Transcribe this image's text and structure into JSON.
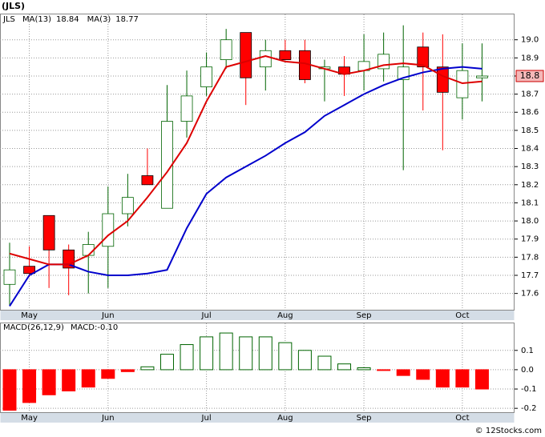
{
  "title": "(JLS)",
  "footer": "© 12Stocks.com",
  "chart_data": [
    {
      "type": "candlestick",
      "legend_symbol": "JLS",
      "categories": [
        null,
        "May",
        null,
        null,
        null,
        "Jun",
        null,
        null,
        null,
        null,
        "Jul",
        null,
        null,
        null,
        "Aug",
        null,
        null,
        null,
        "Sep",
        null,
        null,
        null,
        null,
        "Oct",
        null
      ],
      "open": [
        17.65,
        17.75,
        18.03,
        17.84,
        17.81,
        17.86,
        18.04,
        18.25,
        18.07,
        18.55,
        18.74,
        18.89,
        19.04,
        18.85,
        18.94,
        18.94,
        18.84,
        18.85,
        18.83,
        18.84,
        18.78,
        18.96,
        18.85,
        18.68,
        18.79
      ],
      "high": [
        17.88,
        17.86,
        18.03,
        17.87,
        17.94,
        18.19,
        18.26,
        18.4,
        18.75,
        18.83,
        18.93,
        19.06,
        19.04,
        19.0,
        19.0,
        19.0,
        18.89,
        18.91,
        19.03,
        19.04,
        19.08,
        19.04,
        19.03,
        18.98,
        18.98
      ],
      "low": [
        17.53,
        17.69,
        17.63,
        17.59,
        17.6,
        17.63,
        17.97,
        18.2,
        18.07,
        18.46,
        18.69,
        18.84,
        18.64,
        18.72,
        18.89,
        18.76,
        18.66,
        18.69,
        18.72,
        18.77,
        18.28,
        18.61,
        18.39,
        18.56,
        18.66
      ],
      "close": [
        17.73,
        17.71,
        17.84,
        17.74,
        17.87,
        18.04,
        18.13,
        18.2,
        18.55,
        18.69,
        18.85,
        19.0,
        18.79,
        18.94,
        18.89,
        18.78,
        18.85,
        18.81,
        18.88,
        18.92,
        18.85,
        18.85,
        18.71,
        18.83,
        18.8
      ],
      "up_color": "#006400",
      "down_color": "#ff0000",
      "series": [
        {
          "name": "MA(13)",
          "color": "#0000cc",
          "values": [
            17.53,
            17.7,
            17.76,
            17.76,
            17.72,
            17.7,
            17.7,
            17.71,
            17.73,
            17.96,
            18.15,
            18.24,
            18.3,
            18.36,
            18.43,
            18.49,
            18.58,
            18.64,
            18.7,
            18.75,
            18.79,
            18.82,
            18.84,
            18.85,
            18.84
          ]
        },
        {
          "name": "MA(3)",
          "color": "#dd0000",
          "values": [
            17.82,
            17.79,
            17.76,
            17.76,
            17.81,
            17.92,
            18.0,
            18.13,
            18.27,
            18.43,
            18.66,
            18.85,
            18.88,
            18.91,
            18.88,
            18.87,
            18.84,
            18.81,
            18.83,
            18.86,
            18.87,
            18.86,
            18.8,
            18.76,
            18.77
          ]
        }
      ],
      "price_tag": {
        "value": 18.8,
        "label": "18.8"
      },
      "ylim": [
        17.51,
        19.14
      ],
      "yticks": [
        17.6,
        17.7,
        17.8,
        17.9,
        {
          "value": 18,
          "label": "18.0"
        },
        18.1,
        18.2,
        18.3,
        18.4,
        18.5,
        18.6,
        18.7,
        18.8,
        18.9,
        {
          "value": 19,
          "label": "19.0"
        }
      ],
      "grid": true
    },
    {
      "type": "bar",
      "legend_label": "MACD(26,12,9)",
      "readout": "MACD:-0.10",
      "values": [
        -0.21,
        -0.17,
        -0.13,
        -0.11,
        -0.09,
        -0.045,
        -0.01,
        0.015,
        0.08,
        0.13,
        0.17,
        0.19,
        0.17,
        0.17,
        0.14,
        0.1,
        0.07,
        0.03,
        0.01,
        -0.003,
        -0.03,
        -0.05,
        -0.09,
        -0.09,
        -0.1
      ],
      "up_color": "#006400",
      "down_color": "#ff0000",
      "ylim": [
        -0.22,
        0.24
      ],
      "yticks": [
        0.1,
        {
          "value": 0,
          "label": "0.0"
        },
        -0.1,
        -0.2
      ],
      "grid": true
    }
  ]
}
